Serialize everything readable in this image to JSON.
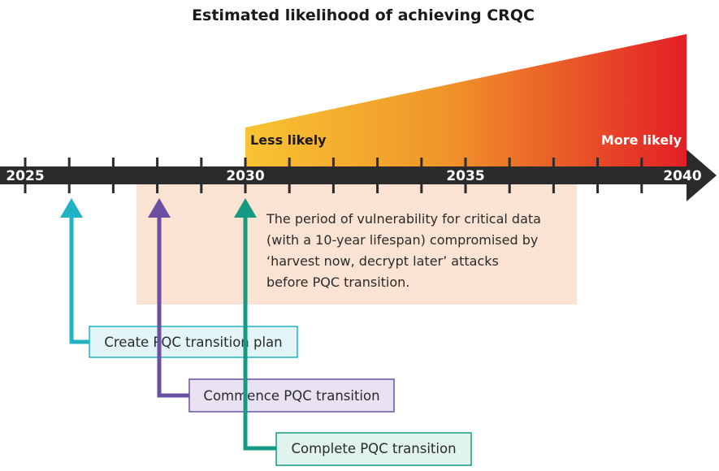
{
  "title": "Estimated likelihood of achieving CRQC",
  "likelihood": {
    "low_label": "Less likely",
    "high_label": "More likely",
    "low_color": "#f8c332",
    "high_color": "#e31f26"
  },
  "timeline": {
    "years": [
      "2025",
      "2030",
      "2035",
      "2040"
    ],
    "bar_color": "#2b2b2b"
  },
  "vulnerability": {
    "lines": [
      "The period of vulnerability for critical data",
      "(with a 10-year lifespan) compromised by",
      "‘harvest now, decrypt later’ attacks",
      "before PQC transition."
    ],
    "color": "#fbe3d3"
  },
  "milestones": [
    {
      "label": "Create PQC transition plan",
      "color": "#1fb3c4",
      "fill": "#e3f5f7"
    },
    {
      "label": "Commence PQC transition",
      "color": "#6a4fa3",
      "fill": "#e8e2f3"
    },
    {
      "label": "Complete PQC transition",
      "color": "#169a84",
      "fill": "#e0f3ef"
    }
  ]
}
